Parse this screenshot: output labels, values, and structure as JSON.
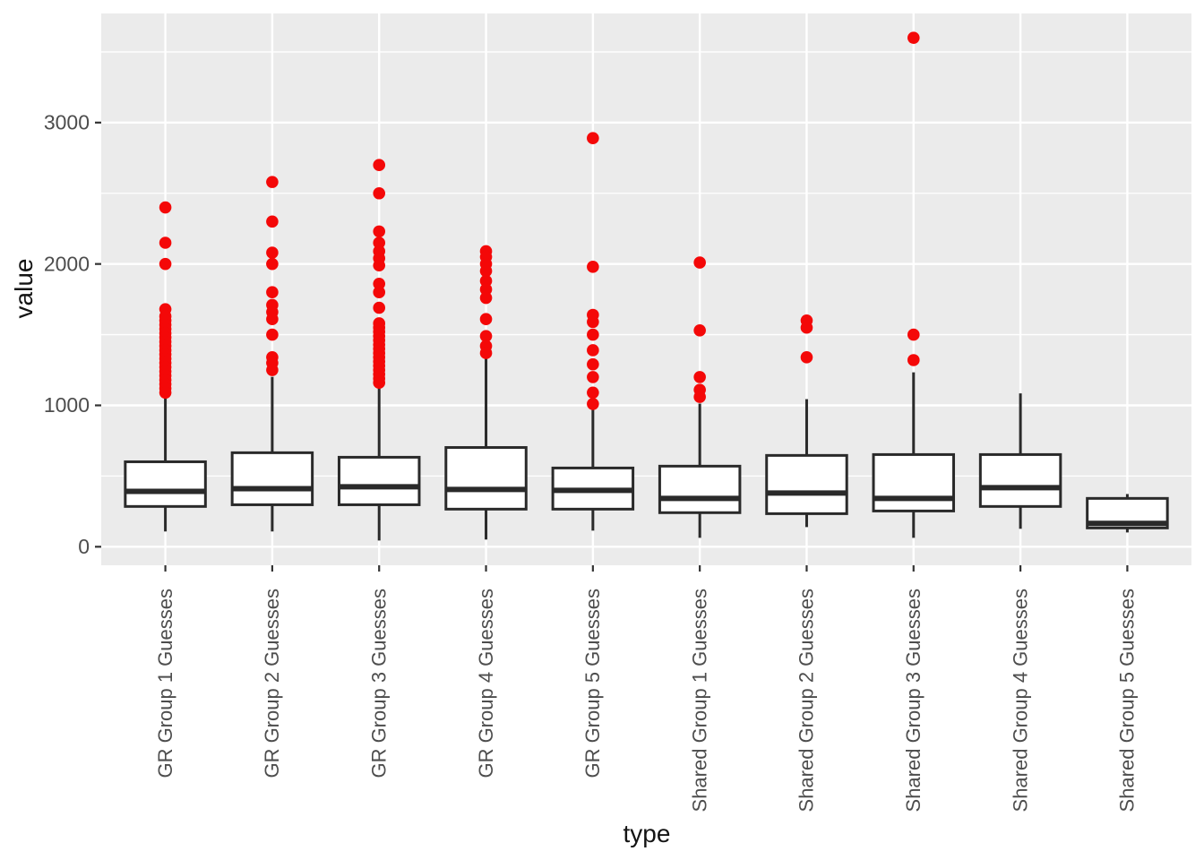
{
  "figure": {
    "background": "#FFFFFF",
    "panel_background": "#EBEBEB",
    "grid_color": "#FFFFFF",
    "box_fill": "#FFFFFF",
    "box_border_color": "#2A2A2A",
    "outlier_color": "#F40808",
    "axis_text_color": "#4D4D4D",
    "axis_title_color": "#141414",
    "tick_color": "#333333"
  },
  "chart_data": {
    "type": "boxplot",
    "title": "",
    "xlabel": "type",
    "ylabel": "value",
    "grid": "on",
    "legend": "none",
    "ylim": [
      -131,
      3772
    ],
    "yticks": [
      0,
      1000,
      2000,
      3000
    ],
    "ytick_labels": [
      "0",
      "1000",
      "2000",
      "3000"
    ],
    "minor_gridlines": [
      500,
      1500,
      2500,
      3500
    ],
    "categories": [
      "GR Group 1 Guesses",
      "GR Group 2 Guesses",
      "GR Group 3 Guesses",
      "GR Group 4 Guesses",
      "GR Group 5 Guesses",
      "Shared Group 1 Guesses",
      "Shared Group 2 Guesses",
      "Shared Group 3 Guesses",
      "Shared Group 4 Guesses",
      "Shared Group 5 Guesses"
    ],
    "series": [
      {
        "name": "GR Group 1 Guesses",
        "whisker_low": 108,
        "q1": 285,
        "median": 392,
        "q3": 601,
        "whisker_high": 1063,
        "outliers": [
          2400,
          2150,
          2000,
          1680,
          1630,
          1600,
          1570,
          1540,
          1510,
          1480,
          1450,
          1420,
          1390,
          1360,
          1330,
          1300,
          1270,
          1240,
          1210,
          1180,
          1150,
          1120,
          1090
        ]
      },
      {
        "name": "GR Group 2 Guesses",
        "whisker_low": 108,
        "q1": 297,
        "median": 411,
        "q3": 665,
        "whisker_high": 1202,
        "outliers": [
          2580,
          2300,
          2080,
          2000,
          1800,
          1710,
          1660,
          1610,
          1500,
          1340,
          1300,
          1250
        ]
      },
      {
        "name": "GR Group 3 Guesses",
        "whisker_low": 44,
        "q1": 297,
        "median": 424,
        "q3": 633,
        "whisker_high": 1126,
        "outliers": [
          2700,
          2500,
          2230,
          2150,
          2090,
          2040,
          1990,
          1860,
          1800,
          1690,
          1580,
          1550,
          1520,
          1490,
          1460,
          1430,
          1400,
          1370,
          1340,
          1310,
          1280,
          1250,
          1220,
          1190,
          1160
        ]
      },
      {
        "name": "GR Group 4 Guesses",
        "whisker_low": 51,
        "q1": 266,
        "median": 405,
        "q3": 702,
        "whisker_high": 1342,
        "outliers": [
          2090,
          2050,
          2000,
          1950,
          1880,
          1820,
          1760,
          1610,
          1490,
          1420,
          1370
        ]
      },
      {
        "name": "GR Group 5 Guesses",
        "whisker_low": 114,
        "q1": 266,
        "median": 399,
        "q3": 557,
        "whisker_high": 968,
        "outliers": [
          2890,
          1980,
          1640,
          1590,
          1500,
          1390,
          1290,
          1200,
          1090,
          1010
        ]
      },
      {
        "name": "Shared Group 1 Guesses",
        "whisker_low": 63,
        "q1": 241,
        "median": 342,
        "q3": 570,
        "whisker_high": 1013,
        "outliers": [
          2010,
          1530,
          1200,
          1110,
          1060
        ]
      },
      {
        "name": "Shared Group 2 Guesses",
        "whisker_low": 139,
        "q1": 234,
        "median": 380,
        "q3": 646,
        "whisker_high": 1044,
        "outliers": [
          1600,
          1550,
          1340
        ]
      },
      {
        "name": "Shared Group 3 Guesses",
        "whisker_low": 63,
        "q1": 253,
        "median": 342,
        "q3": 652,
        "whisker_high": 1234,
        "outliers": [
          3600,
          1500,
          1320
        ]
      },
      {
        "name": "Shared Group 4 Guesses",
        "whisker_low": 127,
        "q1": 285,
        "median": 418,
        "q3": 652,
        "whisker_high": 1085,
        "outliers": []
      },
      {
        "name": "Shared Group 5 Guesses",
        "whisker_low": 101,
        "q1": 133,
        "median": 165,
        "q3": 342,
        "whisker_high": 373,
        "outliers": []
      }
    ]
  }
}
